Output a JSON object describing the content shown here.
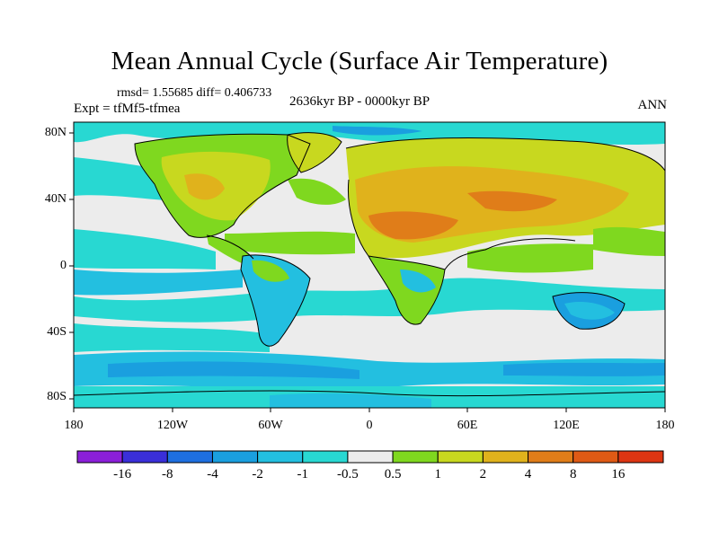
{
  "title": "Mean Annual Cycle (Surface Air Temperature)",
  "stats": "rmsd= 1.55685 diff= 0.406733",
  "experiment": "Expt = tfMf5-tfmea",
  "period": "2636kyr BP - 0000kyr BP",
  "season": "ANN",
  "y_axis_labels": [
    "80N",
    "40N",
    "0",
    "40S",
    "80S"
  ],
  "x_axis_labels": [
    "180",
    "120W",
    "60W",
    "0",
    "60E",
    "120E",
    "180"
  ],
  "colorbar": {
    "labels": [
      "-16",
      "-8",
      "-4",
      "-2",
      "-1",
      "-0.5",
      "0.5",
      "1",
      "2",
      "4",
      "8",
      "16"
    ],
    "colors": [
      "#8b1fd9",
      "#3a2fd9",
      "#1e6fe0",
      "#1a9fdf",
      "#23bfe0",
      "#28d8d2",
      "#ececec",
      "#7fd81f",
      "#c8d81f",
      "#e0b21c",
      "#e07d19",
      "#df5a15",
      "#dd3512"
    ]
  },
  "colors": {
    "ocean_neutral": "#ececec",
    "cool_1": "#28d8d2",
    "cool_2": "#23bfe0",
    "cool_3": "#1a9fdf",
    "warm_1": "#7fd81f",
    "warm_2": "#c8d81f",
    "warm_3": "#e0b21c",
    "warm_4": "#e07d19"
  }
}
